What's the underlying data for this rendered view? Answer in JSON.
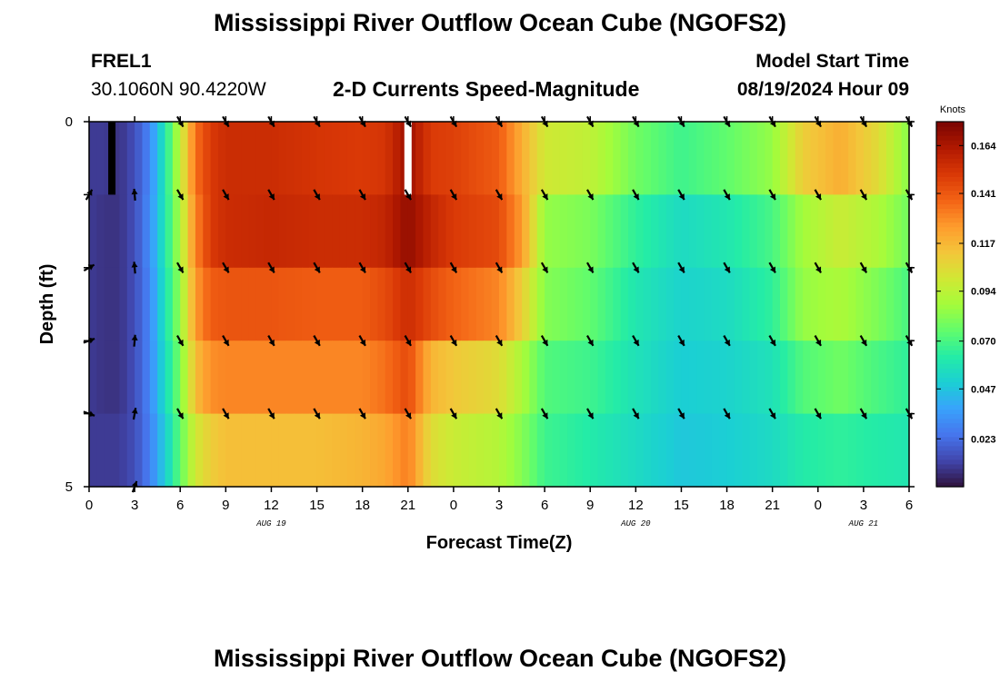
{
  "header": {
    "title": "Mississippi River Outflow Ocean Cube (NGOFS2)",
    "station_id": "FREL1",
    "station_coords": "30.1060N  90.4220W",
    "subtitle": "2-D Currents Speed-Magnitude",
    "model_start_label": "Model Start Time",
    "model_start_value": "08/19/2024 Hour 09",
    "bottom_title": "Mississippi River Outflow Ocean Cube (NGOFS2)"
  },
  "colors": {
    "scale": [
      "#30123b",
      "#4145ab",
      "#4675ed",
      "#39a2fc",
      "#1bcfd4",
      "#24eca6",
      "#61fc6c",
      "#a4fc3b",
      "#d1e834",
      "#f3c63a",
      "#fe9b2d",
      "#f36315",
      "#d93806",
      "#b11901",
      "#7a0402"
    ]
  },
  "chart_data": {
    "type": "heatmap",
    "title": "2-D Currents Speed-Magnitude",
    "xlabel": "Forecast Time(Z)",
    "ylabel": "Depth (ft)",
    "x_range": [
      0,
      54
    ],
    "y_range": [
      0,
      5
    ],
    "y_ticks": [
      "0",
      "5"
    ],
    "x_ticks": [
      {
        "h": 0,
        "label": "0"
      },
      {
        "h": 3,
        "label": "3"
      },
      {
        "h": 6,
        "label": "6"
      },
      {
        "h": 9,
        "label": "9"
      },
      {
        "h": 12,
        "label": "12"
      },
      {
        "h": 15,
        "label": "15"
      },
      {
        "h": 18,
        "label": "18"
      },
      {
        "h": 21,
        "label": "21"
      },
      {
        "h": 24,
        "label": "0"
      },
      {
        "h": 27,
        "label": "3"
      },
      {
        "h": 30,
        "label": "6"
      },
      {
        "h": 33,
        "label": "9"
      },
      {
        "h": 36,
        "label": "12"
      },
      {
        "h": 39,
        "label": "15"
      },
      {
        "h": 42,
        "label": "18"
      },
      {
        "h": 45,
        "label": "21"
      },
      {
        "h": 48,
        "label": "0"
      },
      {
        "h": 51,
        "label": "3"
      },
      {
        "h": 54,
        "label": "6"
      }
    ],
    "date_labels": [
      {
        "h": 12,
        "label": "AUG 19"
      },
      {
        "h": 36,
        "label": "AUG 20"
      },
      {
        "h": 51,
        "label": "AUG 21"
      }
    ],
    "colorbar": {
      "label": "Knots",
      "min": 0,
      "max": 0.1755,
      "ticks": [
        "0.023",
        "0.047",
        "0.070",
        "0.094",
        "0.117",
        "0.141",
        "0.164"
      ]
    },
    "depth_levels": [
      0,
      1,
      2,
      3,
      4,
      5
    ],
    "speed_key_hours": [
      0,
      1,
      2,
      3,
      4,
      5,
      6,
      7,
      8,
      9,
      12,
      15,
      18,
      19.5,
      21,
      22.5,
      24,
      27,
      28.5,
      30,
      33,
      36,
      39,
      42,
      45,
      47,
      49.5,
      52,
      54
    ],
    "speed_knots": [
      [
        0.01,
        0.01,
        0.008,
        0.015,
        0.03,
        0.06,
        0.095,
        0.135,
        0.15,
        0.155,
        0.155,
        0.152,
        0.15,
        0.152,
        0.168,
        0.15,
        0.148,
        0.14,
        0.12,
        0.1,
        0.095,
        0.078,
        0.068,
        0.075,
        0.085,
        0.11,
        0.12,
        0.105,
        0.082
      ],
      [
        0.01,
        0.008,
        0.008,
        0.015,
        0.032,
        0.06,
        0.09,
        0.13,
        0.15,
        0.155,
        0.157,
        0.155,
        0.155,
        0.158,
        0.17,
        0.158,
        0.15,
        0.145,
        0.125,
        0.085,
        0.08,
        0.065,
        0.055,
        0.06,
        0.07,
        0.088,
        0.098,
        0.09,
        0.078
      ],
      [
        0.01,
        0.008,
        0.008,
        0.015,
        0.03,
        0.058,
        0.085,
        0.125,
        0.14,
        0.142,
        0.142,
        0.14,
        0.14,
        0.145,
        0.155,
        0.145,
        0.138,
        0.13,
        0.11,
        0.082,
        0.075,
        0.06,
        0.052,
        0.055,
        0.065,
        0.085,
        0.09,
        0.08,
        0.07
      ],
      [
        0.01,
        0.008,
        0.008,
        0.015,
        0.03,
        0.055,
        0.08,
        0.115,
        0.128,
        0.13,
        0.13,
        0.13,
        0.13,
        0.135,
        0.145,
        0.118,
        0.112,
        0.105,
        0.09,
        0.072,
        0.068,
        0.058,
        0.05,
        0.052,
        0.058,
        0.072,
        0.078,
        0.07,
        0.065
      ],
      [
        0.01,
        0.01,
        0.01,
        0.015,
        0.028,
        0.05,
        0.075,
        0.1,
        0.11,
        0.115,
        0.115,
        0.115,
        0.118,
        0.122,
        0.132,
        0.105,
        0.098,
        0.092,
        0.082,
        0.068,
        0.062,
        0.055,
        0.048,
        0.05,
        0.055,
        0.062,
        0.065,
        0.062,
        0.06
      ],
      [
        0.012,
        0.012,
        0.012,
        0.015,
        0.025,
        0.045,
        0.068,
        0.09,
        0.098,
        0.102,
        0.105,
        0.105,
        0.108,
        0.11,
        0.12,
        0.09,
        0.085,
        0.082,
        0.075,
        0.06,
        0.055,
        0.048,
        0.04,
        0.038,
        0.042,
        0.048,
        0.052,
        0.05,
        0.052
      ]
    ],
    "vector_hours": [
      0,
      3,
      6,
      9,
      12,
      15,
      18,
      21,
      24,
      27,
      30,
      33,
      36,
      39,
      42,
      45,
      48,
      51,
      54
    ],
    "vector_depths": [
      0,
      1,
      2,
      3,
      4,
      5
    ],
    "vector_directions_deg": [
      [
        null,
        null,
        150,
        150,
        150,
        150,
        150,
        150,
        150,
        150,
        150,
        150,
        150,
        150,
        150,
        150,
        150,
        150,
        150
      ],
      [
        30,
        355,
        150,
        150,
        150,
        150,
        150,
        150,
        150,
        150,
        150,
        150,
        150,
        150,
        150,
        150,
        150,
        150,
        150
      ],
      [
        60,
        355,
        150,
        150,
        150,
        150,
        150,
        150,
        150,
        150,
        150,
        150,
        150,
        150,
        150,
        150,
        150,
        150,
        150
      ],
      [
        70,
        5,
        150,
        150,
        150,
        150,
        150,
        150,
        150,
        150,
        150,
        150,
        150,
        150,
        150,
        150,
        150,
        150,
        150
      ],
      [
        110,
        10,
        150,
        150,
        150,
        150,
        150,
        150,
        150,
        150,
        150,
        150,
        150,
        150,
        150,
        150,
        150,
        150,
        150
      ],
      [
        null,
        20,
        null,
        null,
        null,
        null,
        null,
        null,
        null,
        null,
        null,
        null,
        null,
        null,
        null,
        null,
        null,
        null,
        null
      ]
    ],
    "surface_markers": [
      {
        "h": 1.5,
        "color": "#000000"
      },
      {
        "h": 21,
        "color": "#ffffff"
      }
    ]
  }
}
